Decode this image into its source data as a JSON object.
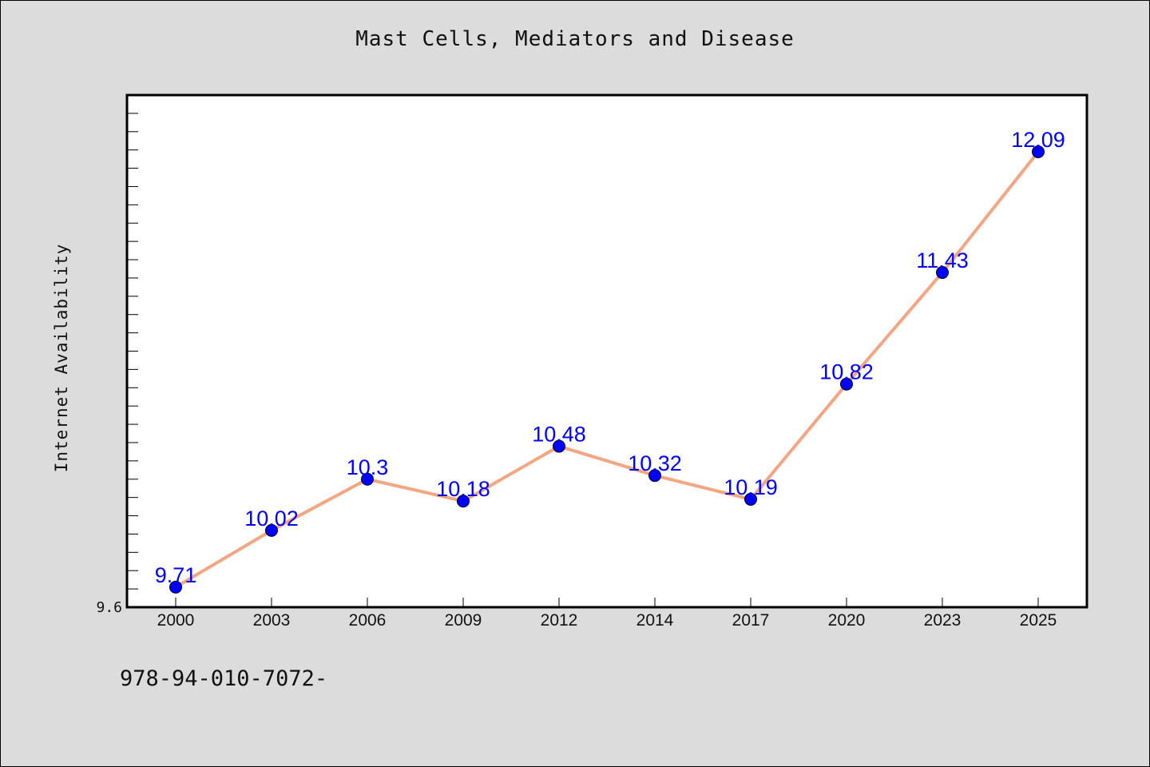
{
  "title": "Mast Cells, Mediators and Disease",
  "footer_text": "978-94-010-7072-",
  "colors": {
    "background": "#dcdcdc",
    "plot_background": "#ffffff",
    "line": "#f4a582",
    "marker": "#0000ff",
    "data_label": "#0000ff"
  },
  "chart_data": {
    "type": "line",
    "title": "Mast Cells, Mediators and Disease",
    "xlabel": "",
    "ylabel": "Internet Availability",
    "categories": [
      "2000",
      "2003",
      "2006",
      "2009",
      "2012",
      "2014",
      "2017",
      "2020",
      "2023",
      "2025"
    ],
    "series": [
      {
        "values": [
          9.71,
          10.02,
          10.3,
          10.18,
          10.48,
          10.32,
          10.19,
          10.82,
          11.43,
          12.09
        ]
      }
    ],
    "data_labels": [
      "9.71",
      "10.02",
      "10.3",
      "10.18",
      "10.48",
      "10.32",
      "10.19",
      "10.82",
      "11.43",
      "12.09"
    ],
    "ylim": [
      9.6,
      12.4
    ],
    "y_tick_labels": [
      "9.6"
    ],
    "grid": false,
    "legend": "none"
  }
}
